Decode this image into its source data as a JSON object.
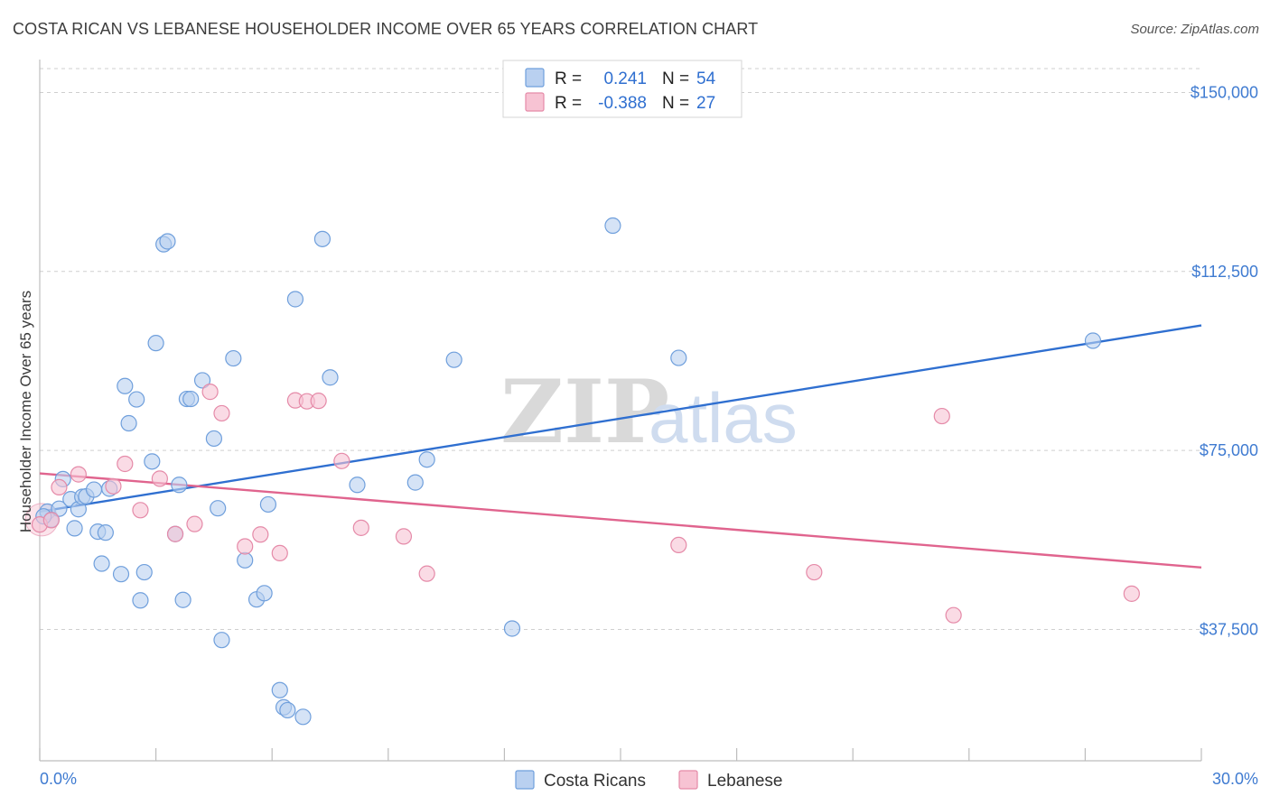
{
  "title": "COSTA RICAN VS LEBANESE HOUSEHOLDER INCOME OVER 65 YEARS CORRELATION CHART",
  "source": "Source: ZipAtlas.com",
  "watermark": {
    "zip": "ZIP",
    "atlas": "atlas"
  },
  "colors": {
    "blue_fill": "#b9d0f0",
    "blue_stroke": "#6f9fdc",
    "blue_line": "#2f6fd0",
    "pink_fill": "#f7c3d3",
    "pink_stroke": "#e58aa8",
    "pink_line": "#e0648e",
    "grid": "#cfcfcf",
    "tick_label": "#3f7bd1"
  },
  "legend": {
    "rows": [
      {
        "r_label": "R =",
        "r_value": "0.241",
        "n_label": "N =",
        "n_value": "54"
      },
      {
        "r_label": "R =",
        "r_value": "-0.388",
        "n_label": "N =",
        "n_value": "27"
      }
    ]
  },
  "bottom_legend": {
    "series1": "Costa Ricans",
    "series2": "Lebanese"
  },
  "chart_data": {
    "type": "scatter",
    "title": "COSTA RICAN VS LEBANESE HOUSEHOLDER INCOME OVER 65 YEARS CORRELATION CHART",
    "xlabel": "",
    "ylabel": "Householder Income Over 65 years",
    "xlim": [
      0,
      30
    ],
    "ylim": [
      10000,
      155000
    ],
    "x_tick_labels": [
      "0.0%",
      "30.0%"
    ],
    "y_ticks": [
      37500,
      75000,
      112500,
      150000
    ],
    "y_tick_labels": [
      "$37,500",
      "$75,000",
      "$112,500",
      "$150,000"
    ],
    "grid": true,
    "legend_position": "top-center",
    "series": [
      {
        "name": "Costa Ricans",
        "points": [
          [
            0.2,
            62200
          ],
          [
            0.3,
            60500
          ],
          [
            0.5,
            62800
          ],
          [
            0.6,
            69000
          ],
          [
            0.8,
            64800
          ],
          [
            0.9,
            58700
          ],
          [
            1.0,
            62700
          ],
          [
            1.1,
            65300
          ],
          [
            1.2,
            65400
          ],
          [
            1.4,
            66800
          ],
          [
            1.5,
            58000
          ],
          [
            1.6,
            51300
          ],
          [
            1.7,
            57800
          ],
          [
            1.8,
            67000
          ],
          [
            2.1,
            49100
          ],
          [
            2.2,
            88500
          ],
          [
            2.3,
            80700
          ],
          [
            2.5,
            85700
          ],
          [
            2.6,
            43600
          ],
          [
            2.7,
            49500
          ],
          [
            2.9,
            72700
          ],
          [
            3.0,
            97500
          ],
          [
            3.2,
            118200
          ],
          [
            3.3,
            118800
          ],
          [
            3.5,
            57500
          ],
          [
            3.6,
            67800
          ],
          [
            3.7,
            43700
          ],
          [
            3.8,
            85800
          ],
          [
            3.9,
            85800
          ],
          [
            4.2,
            89700
          ],
          [
            4.5,
            77500
          ],
          [
            4.6,
            62900
          ],
          [
            4.7,
            35300
          ],
          [
            5.0,
            94300
          ],
          [
            5.3,
            52000
          ],
          [
            5.6,
            43800
          ],
          [
            5.8,
            45100
          ],
          [
            5.9,
            63700
          ],
          [
            6.2,
            24800
          ],
          [
            6.3,
            21200
          ],
          [
            6.4,
            20600
          ],
          [
            6.6,
            106700
          ],
          [
            6.8,
            19200
          ],
          [
            7.3,
            119300
          ],
          [
            7.5,
            90300
          ],
          [
            8.2,
            67800
          ],
          [
            9.7,
            68300
          ],
          [
            10.0,
            73100
          ],
          [
            10.7,
            94000
          ],
          [
            12.2,
            37700
          ],
          [
            14.8,
            122100
          ],
          [
            16.5,
            94400
          ],
          [
            27.2,
            98000
          ],
          [
            0.1,
            61200
          ]
        ]
      },
      {
        "name": "Lebanese",
        "points": [
          [
            0.0,
            59500
          ],
          [
            0.5,
            67300
          ],
          [
            1.0,
            70000
          ],
          [
            1.9,
            67500
          ],
          [
            2.2,
            72200
          ],
          [
            2.6,
            62500
          ],
          [
            3.1,
            69100
          ],
          [
            3.5,
            57500
          ],
          [
            4.0,
            59600
          ],
          [
            4.4,
            87300
          ],
          [
            4.7,
            82800
          ],
          [
            5.3,
            54900
          ],
          [
            5.7,
            57400
          ],
          [
            6.2,
            53500
          ],
          [
            6.6,
            85500
          ],
          [
            6.9,
            85300
          ],
          [
            7.2,
            85400
          ],
          [
            7.8,
            72800
          ],
          [
            8.3,
            58800
          ],
          [
            9.4,
            57000
          ],
          [
            10.0,
            49200
          ],
          [
            16.5,
            55200
          ],
          [
            20.0,
            49500
          ],
          [
            23.3,
            82200
          ],
          [
            23.6,
            40500
          ],
          [
            28.2,
            45000
          ],
          [
            0.3,
            60400
          ]
        ]
      }
    ],
    "trend_lines": [
      {
        "name": "Costa Ricans",
        "x": [
          0,
          30
        ],
        "y": [
          62200,
          101200
        ]
      },
      {
        "name": "Lebanese",
        "x": [
          0,
          30
        ],
        "y": [
          70200,
          50500
        ]
      }
    ]
  }
}
